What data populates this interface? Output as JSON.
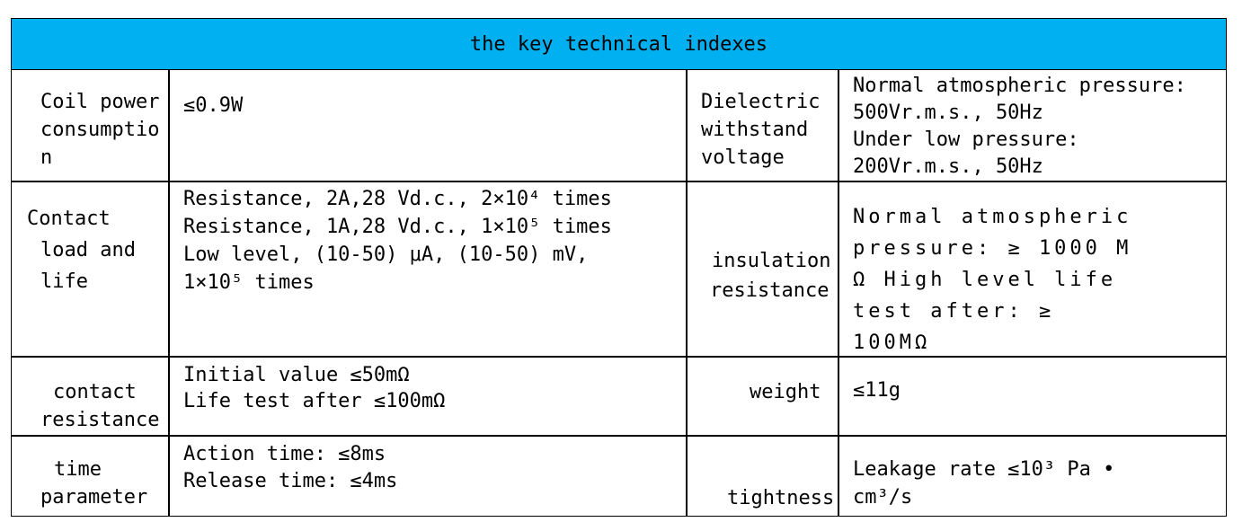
{
  "table": {
    "title": "the key technical indexes",
    "rows": [
      {
        "left_label": [
          "Coil power",
          "consumptio",
          "n"
        ],
        "left_value": [
          "≤0.9W"
        ],
        "right_label": [
          "Dielectric",
          "withstand",
          "voltage"
        ],
        "right_value": [
          "Normal atmospheric pressure:",
          "500Vr.m.s., 50Hz",
          "Under low pressure:",
          "200Vr.m.s., 50Hz"
        ]
      },
      {
        "left_label": [
          "Contact",
          "load and",
          "life"
        ],
        "left_value": [
          "Resistance, 2A,28 Vd.c., 2×10⁴  times",
          "Resistance, 1A,28 Vd.c., 1×10⁵ times",
          "Low level, (10-50) μA, (10-50) mV,",
          "1×10⁵ times"
        ],
        "right_label": [
          "insulation",
          "resistance"
        ],
        "right_value": [
          "Normal atmospheric",
          "pressure: ≥ 1000 M",
          "Ω High level life",
          "test after: ≥",
          "100MΩ"
        ]
      },
      {
        "left_label": [
          "contact",
          "resistance"
        ],
        "left_value": [
          "Initial value ≤50mΩ",
          "Life test after ≤100mΩ"
        ],
        "right_label": [
          "weight"
        ],
        "right_value": [
          "≤11g"
        ]
      },
      {
        "left_label": [
          "time",
          "parameter"
        ],
        "left_value": [
          "Action time: ≤8ms",
          "Release time: ≤4ms"
        ],
        "right_label": [
          "tightness"
        ],
        "right_value": [
          "Leakage rate ≤10³ Pa •",
          "cm³/s"
        ]
      }
    ]
  }
}
